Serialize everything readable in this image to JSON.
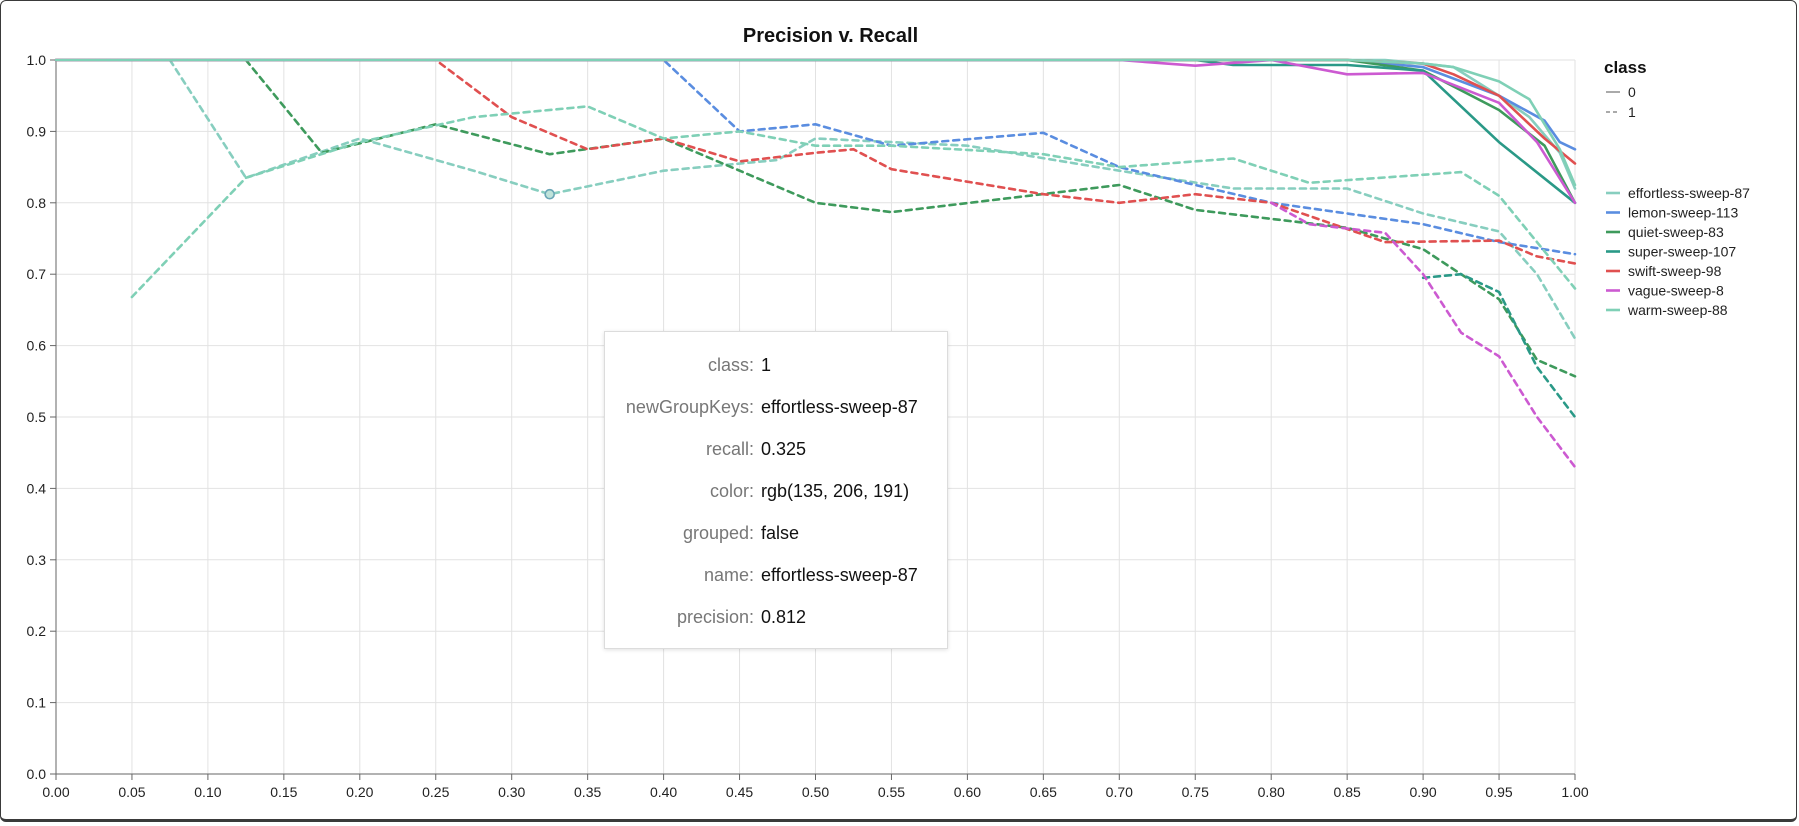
{
  "chart_data": {
    "type": "line",
    "title": "Precision v. Recall",
    "xlabel": "",
    "ylabel": "",
    "xlim": [
      0.0,
      1.0
    ],
    "ylim": [
      0.0,
      1.0
    ],
    "x_ticks": [
      "0.00",
      "0.05",
      "0.10",
      "0.15",
      "0.20",
      "0.25",
      "0.30",
      "0.35",
      "0.40",
      "0.45",
      "0.50",
      "0.55",
      "0.60",
      "0.65",
      "0.70",
      "0.75",
      "0.80",
      "0.85",
      "0.90",
      "0.95",
      "1.00"
    ],
    "y_ticks": [
      "0.0",
      "0.1",
      "0.2",
      "0.3",
      "0.4",
      "0.5",
      "0.6",
      "0.7",
      "0.8",
      "0.9",
      "1.0"
    ],
    "grid": true,
    "legend_position": "right",
    "legend_title": "class",
    "class_legend": [
      {
        "label": "0",
        "dash": "solid"
      },
      {
        "label": "1",
        "dash": "dashed"
      }
    ],
    "series": [
      {
        "name": "effortless-sweep-87",
        "color": "#87cebf",
        "class": "0",
        "points": [
          [
            0.0,
            1.0
          ],
          [
            0.8,
            1.0
          ],
          [
            0.85,
            1.0
          ],
          [
            0.875,
            1.0
          ],
          [
            0.9,
            0.995
          ],
          [
            0.92,
            0.99
          ],
          [
            0.95,
            0.95
          ],
          [
            0.97,
            0.92
          ],
          [
            0.99,
            0.87
          ],
          [
            1.0,
            0.82
          ]
        ]
      },
      {
        "name": "effortless-sweep-87",
        "color": "#87cebf",
        "class": "1",
        "points": [
          [
            0.075,
            1.0
          ],
          [
            0.125,
            0.835
          ],
          [
            0.2,
            0.89
          ],
          [
            0.275,
            0.845
          ],
          [
            0.325,
            0.812
          ],
          [
            0.4,
            0.845
          ],
          [
            0.475,
            0.86
          ],
          [
            0.5,
            0.89
          ],
          [
            0.6,
            0.88
          ],
          [
            0.7,
            0.845
          ],
          [
            0.775,
            0.82
          ],
          [
            0.85,
            0.82
          ],
          [
            0.9,
            0.785
          ],
          [
            0.95,
            0.76
          ],
          [
            0.975,
            0.7
          ],
          [
            1.0,
            0.61
          ]
        ]
      },
      {
        "name": "lemon-sweep-113",
        "color": "#5a8de0",
        "class": "0",
        "points": [
          [
            0.0,
            1.0
          ],
          [
            0.85,
            1.0
          ],
          [
            0.9,
            0.99
          ],
          [
            0.95,
            0.95
          ],
          [
            0.98,
            0.915
          ],
          [
            0.99,
            0.885
          ],
          [
            1.0,
            0.875
          ]
        ]
      },
      {
        "name": "lemon-sweep-113",
        "color": "#5a8de0",
        "class": "1",
        "points": [
          [
            0.025,
            1.0
          ],
          [
            0.4,
            1.0
          ],
          [
            0.425,
            0.95
          ],
          [
            0.45,
            0.9
          ],
          [
            0.5,
            0.91
          ],
          [
            0.55,
            0.88
          ],
          [
            0.65,
            0.898
          ],
          [
            0.7,
            0.85
          ],
          [
            0.8,
            0.8
          ],
          [
            0.9,
            0.77
          ],
          [
            0.95,
            0.745
          ],
          [
            1.0,
            0.728
          ]
        ]
      },
      {
        "name": "quiet-sweep-83",
        "color": "#3e9a5c",
        "class": "0",
        "points": [
          [
            0.0,
            1.0
          ],
          [
            0.8,
            1.0
          ],
          [
            0.85,
            1.0
          ],
          [
            0.9,
            0.985
          ],
          [
            0.95,
            0.93
          ],
          [
            0.98,
            0.88
          ],
          [
            1.0,
            0.8
          ]
        ]
      },
      {
        "name": "quiet-sweep-83",
        "color": "#3e9a5c",
        "class": "1",
        "points": [
          [
            0.125,
            1.0
          ],
          [
            0.175,
            0.87
          ],
          [
            0.25,
            0.91
          ],
          [
            0.325,
            0.868
          ],
          [
            0.4,
            0.89
          ],
          [
            0.5,
            0.8
          ],
          [
            0.55,
            0.787
          ],
          [
            0.7,
            0.825
          ],
          [
            0.75,
            0.79
          ],
          [
            0.85,
            0.765
          ],
          [
            0.9,
            0.735
          ],
          [
            0.95,
            0.665
          ],
          [
            0.975,
            0.58
          ],
          [
            1.0,
            0.557
          ]
        ]
      },
      {
        "name": "super-sweep-107",
        "color": "#2a9987",
        "class": "0",
        "points": [
          [
            0.0,
            1.0
          ],
          [
            0.75,
            1.0
          ],
          [
            0.775,
            0.993
          ],
          [
            0.85,
            0.993
          ],
          [
            0.9,
            0.985
          ],
          [
            0.95,
            0.885
          ],
          [
            1.0,
            0.8
          ]
        ]
      },
      {
        "name": "super-sweep-107",
        "color": "#2a9987",
        "class": "1",
        "points": [
          [
            0.9,
            0.695
          ],
          [
            0.925,
            0.7
          ],
          [
            0.95,
            0.675
          ],
          [
            0.975,
            0.57
          ],
          [
            1.0,
            0.5
          ]
        ]
      },
      {
        "name": "swift-sweep-98",
        "color": "#e05050",
        "class": "0",
        "points": [
          [
            0.0,
            1.0
          ],
          [
            0.8,
            1.0
          ],
          [
            0.85,
            1.0
          ],
          [
            0.9,
            0.995
          ],
          [
            0.92,
            0.98
          ],
          [
            0.95,
            0.95
          ],
          [
            0.98,
            0.89
          ],
          [
            1.0,
            0.855
          ]
        ]
      },
      {
        "name": "swift-sweep-98",
        "color": "#e05050",
        "class": "1",
        "points": [
          [
            0.0,
            1.0
          ],
          [
            0.25,
            1.0
          ],
          [
            0.3,
            0.92
          ],
          [
            0.35,
            0.875
          ],
          [
            0.4,
            0.89
          ],
          [
            0.45,
            0.858
          ],
          [
            0.5,
            0.87
          ],
          [
            0.525,
            0.875
          ],
          [
            0.55,
            0.847
          ],
          [
            0.65,
            0.812
          ],
          [
            0.7,
            0.8
          ],
          [
            0.75,
            0.812
          ],
          [
            0.8,
            0.8
          ],
          [
            0.875,
            0.745
          ],
          [
            0.95,
            0.747
          ],
          [
            0.975,
            0.725
          ],
          [
            1.0,
            0.715
          ]
        ]
      },
      {
        "name": "vague-sweep-8",
        "color": "#cc5ad1",
        "class": "0",
        "points": [
          [
            0.0,
            1.0
          ],
          [
            0.7,
            1.0
          ],
          [
            0.75,
            0.992
          ],
          [
            0.8,
            1.0
          ],
          [
            0.85,
            0.98
          ],
          [
            0.9,
            0.982
          ],
          [
            0.95,
            0.94
          ],
          [
            0.975,
            0.885
          ],
          [
            1.0,
            0.8
          ]
        ]
      },
      {
        "name": "vague-sweep-8",
        "color": "#cc5ad1",
        "class": "1",
        "points": [
          [
            0.8,
            0.8
          ],
          [
            0.825,
            0.77
          ],
          [
            0.875,
            0.758
          ],
          [
            0.9,
            0.7
          ],
          [
            0.925,
            0.618
          ],
          [
            0.95,
            0.585
          ],
          [
            0.975,
            0.5
          ],
          [
            1.0,
            0.43
          ]
        ]
      },
      {
        "name": "warm-sweep-88",
        "color": "#7fd0b6",
        "class": "0",
        "points": [
          [
            0.0,
            1.0
          ],
          [
            0.85,
            1.0
          ],
          [
            0.9,
            0.995
          ],
          [
            0.92,
            0.99
          ],
          [
            0.95,
            0.97
          ],
          [
            0.97,
            0.945
          ],
          [
            0.99,
            0.875
          ],
          [
            1.0,
            0.825
          ]
        ]
      },
      {
        "name": "warm-sweep-88",
        "color": "#7fd0b6",
        "class": "1",
        "points": [
          [
            0.05,
            0.668
          ],
          [
            0.125,
            0.835
          ],
          [
            0.2,
            0.885
          ],
          [
            0.275,
            0.92
          ],
          [
            0.35,
            0.935
          ],
          [
            0.4,
            0.89
          ],
          [
            0.45,
            0.9
          ],
          [
            0.5,
            0.88
          ],
          [
            0.55,
            0.88
          ],
          [
            0.65,
            0.868
          ],
          [
            0.7,
            0.85
          ],
          [
            0.775,
            0.862
          ],
          [
            0.825,
            0.828
          ],
          [
            0.925,
            0.843
          ],
          [
            0.95,
            0.81
          ],
          [
            1.0,
            0.68
          ]
        ]
      }
    ],
    "legend": [
      {
        "name": "effortless-sweep-87",
        "color": "#87cebf"
      },
      {
        "name": "lemon-sweep-113",
        "color": "#5a8de0"
      },
      {
        "name": "quiet-sweep-83",
        "color": "#3e9a5c"
      },
      {
        "name": "super-sweep-107",
        "color": "#2a9987"
      },
      {
        "name": "swift-sweep-98",
        "color": "#e05050"
      },
      {
        "name": "vague-sweep-8",
        "color": "#cc5ad1"
      },
      {
        "name": "warm-sweep-88",
        "color": "#7fd0b6"
      }
    ],
    "hover_point": {
      "recall": 0.325,
      "precision": 0.812,
      "color": "#87cebf"
    }
  },
  "tooltip": {
    "rows": [
      {
        "key": "class:",
        "value": "1"
      },
      {
        "key": "newGroupKeys:",
        "value": "effortless-sweep-87"
      },
      {
        "key": "recall:",
        "value": "0.325"
      },
      {
        "key": "color:",
        "value": "rgb(135, 206, 191)"
      },
      {
        "key": "grouped:",
        "value": "false"
      },
      {
        "key": "name:",
        "value": "effortless-sweep-87"
      },
      {
        "key": "precision:",
        "value": "0.812"
      }
    ]
  }
}
